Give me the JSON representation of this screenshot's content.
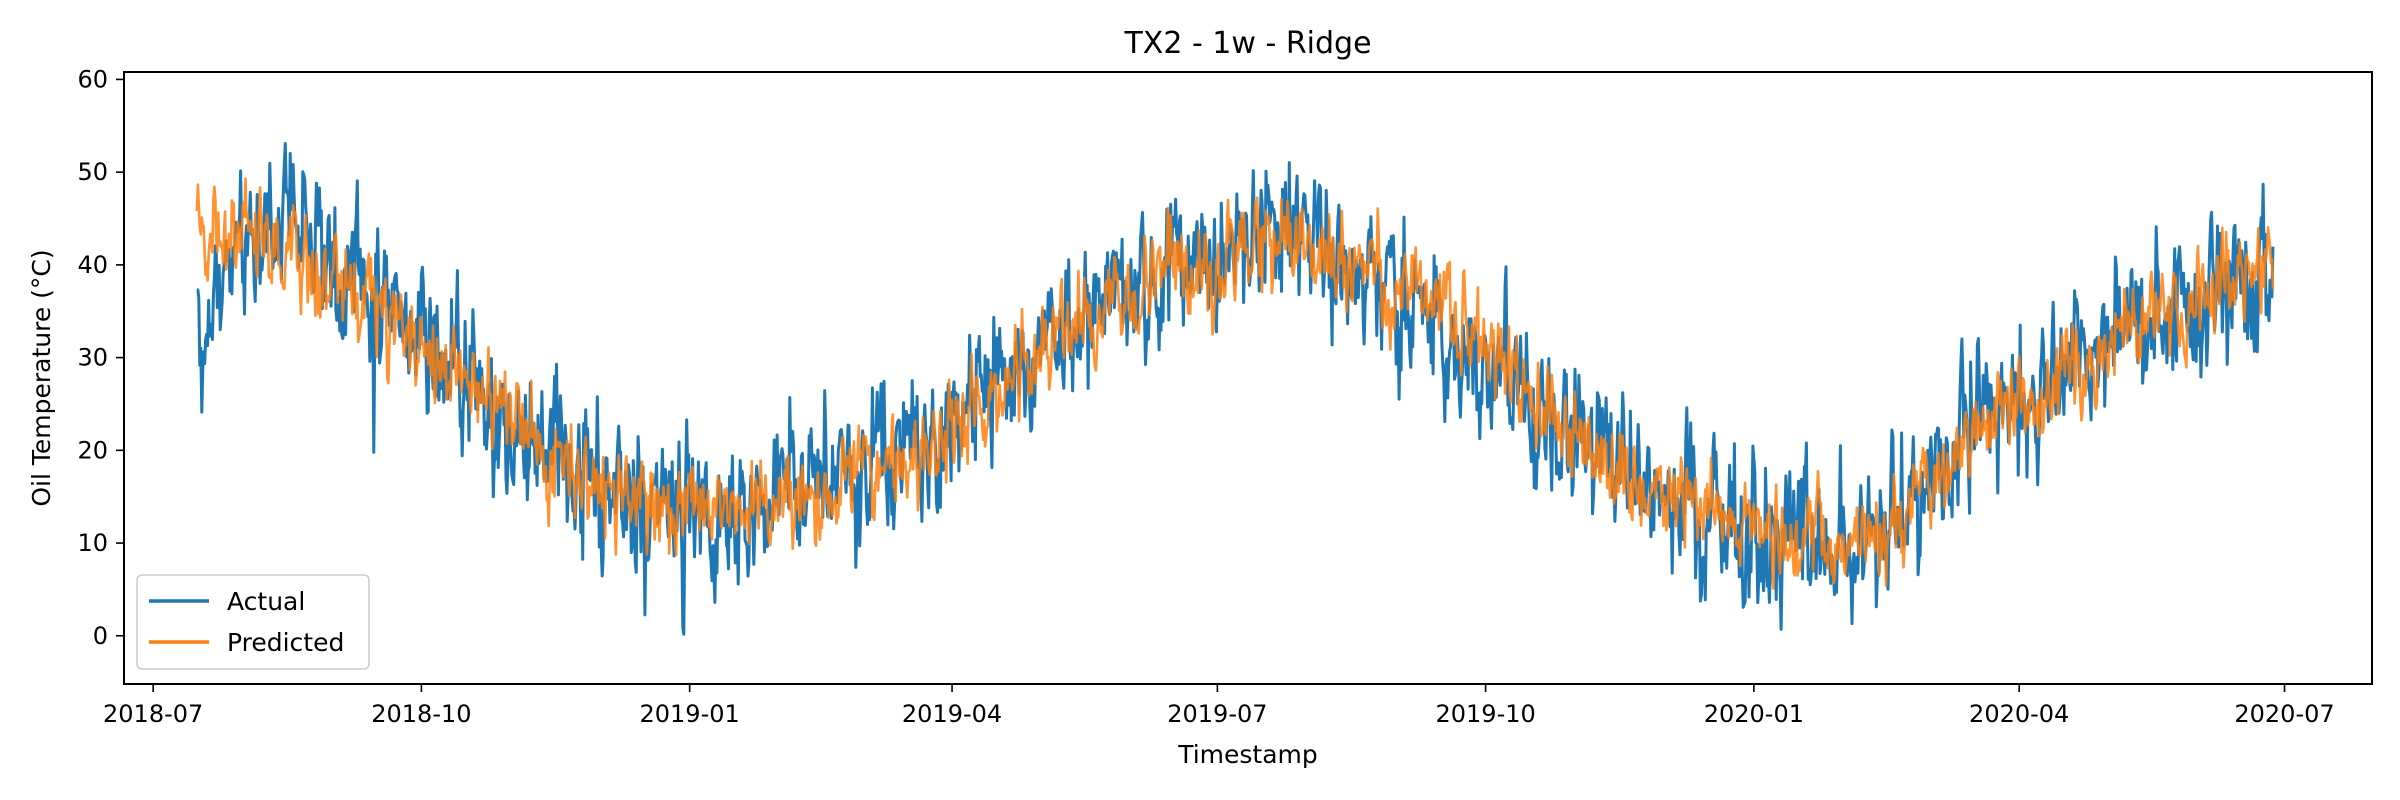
{
  "chart_data": {
    "type": "line",
    "title": "TX2 - 1w - Ridge",
    "xlabel": "Timestamp",
    "ylabel": "Oil Temperature (°C)",
    "x_range": [
      "2018-06-21",
      "2020-07-31"
    ],
    "ylim": [
      -5.2,
      60.8
    ],
    "x_ticks": [
      "2018-07",
      "2018-10",
      "2019-01",
      "2019-04",
      "2019-07",
      "2019-10",
      "2020-01",
      "2020-04",
      "2020-07"
    ],
    "y_ticks": [
      0,
      10,
      20,
      30,
      40,
      50,
      60
    ],
    "grid": false,
    "legend_position": "bottom-left",
    "series": [
      {
        "name": "Actual",
        "color": "#1f77b4",
        "anchors": [
          [
            "2018-07-16",
            33
          ],
          [
            "2018-08-01",
            43
          ],
          [
            "2018-08-15",
            47
          ],
          [
            "2018-09-01",
            40
          ],
          [
            "2018-09-15",
            36
          ],
          [
            "2018-10-01",
            31
          ],
          [
            "2018-10-15",
            28
          ],
          [
            "2018-11-01",
            23
          ],
          [
            "2018-11-15",
            20
          ],
          [
            "2018-12-01",
            16
          ],
          [
            "2018-12-15",
            15
          ],
          [
            "2019-01-01",
            14
          ],
          [
            "2019-01-15",
            13
          ],
          [
            "2019-02-01",
            14
          ],
          [
            "2019-02-15",
            16
          ],
          [
            "2019-03-01",
            18
          ],
          [
            "2019-03-15",
            20
          ],
          [
            "2019-04-01",
            22
          ],
          [
            "2019-04-15",
            27
          ],
          [
            "2019-05-01",
            31
          ],
          [
            "2019-05-15",
            34
          ],
          [
            "2019-06-01",
            37
          ],
          [
            "2019-06-15",
            39
          ],
          [
            "2019-07-01",
            41
          ],
          [
            "2019-07-15",
            43
          ],
          [
            "2019-08-01",
            44
          ],
          [
            "2019-08-15",
            40
          ],
          [
            "2019-09-01",
            37
          ],
          [
            "2019-09-15",
            35
          ],
          [
            "2019-10-01",
            30
          ],
          [
            "2019-10-15",
            26
          ],
          [
            "2019-11-01",
            22
          ],
          [
            "2019-11-15",
            19
          ],
          [
            "2019-12-01",
            15
          ],
          [
            "2019-12-15",
            13
          ],
          [
            "2020-01-01",
            11
          ],
          [
            "2020-01-15",
            10
          ],
          [
            "2020-02-01",
            8
          ],
          [
            "2020-02-15",
            12
          ],
          [
            "2020-03-01",
            17
          ],
          [
            "2020-03-15",
            22
          ],
          [
            "2020-04-01",
            26
          ],
          [
            "2020-04-15",
            29
          ],
          [
            "2020-05-01",
            32
          ],
          [
            "2020-05-15",
            35
          ],
          [
            "2020-06-01",
            37
          ],
          [
            "2020-06-15",
            40
          ],
          [
            "2020-06-27",
            42
          ]
        ]
      },
      {
        "name": "Predicted",
        "color": "#ff7f0e",
        "anchors": [
          [
            "2018-07-16",
            44
          ],
          [
            "2018-08-01",
            42
          ],
          [
            "2018-08-15",
            41
          ],
          [
            "2018-09-01",
            38
          ],
          [
            "2018-09-15",
            35
          ],
          [
            "2018-10-01",
            31
          ],
          [
            "2018-10-15",
            28
          ],
          [
            "2018-11-01",
            23
          ],
          [
            "2018-11-15",
            19
          ],
          [
            "2018-12-01",
            16
          ],
          [
            "2018-12-15",
            15
          ],
          [
            "2019-01-01",
            14
          ],
          [
            "2019-01-15",
            14
          ],
          [
            "2019-02-01",
            15
          ],
          [
            "2019-02-15",
            16
          ],
          [
            "2019-03-01",
            18
          ],
          [
            "2019-03-15",
            20
          ],
          [
            "2019-04-01",
            22
          ],
          [
            "2019-04-15",
            26
          ],
          [
            "2019-05-01",
            30
          ],
          [
            "2019-05-15",
            34
          ],
          [
            "2019-06-01",
            37
          ],
          [
            "2019-06-15",
            39
          ],
          [
            "2019-07-01",
            40
          ],
          [
            "2019-07-15",
            42
          ],
          [
            "2019-08-01",
            43
          ],
          [
            "2019-08-15",
            40
          ],
          [
            "2019-09-01",
            37
          ],
          [
            "2019-09-15",
            35
          ],
          [
            "2019-10-01",
            30
          ],
          [
            "2019-10-15",
            26
          ],
          [
            "2019-11-01",
            22
          ],
          [
            "2019-11-15",
            18
          ],
          [
            "2019-12-01",
            16
          ],
          [
            "2019-12-15",
            14
          ],
          [
            "2020-01-01",
            12
          ],
          [
            "2020-01-15",
            11
          ],
          [
            "2020-02-01",
            9
          ],
          [
            "2020-02-15",
            12
          ],
          [
            "2020-03-01",
            16
          ],
          [
            "2020-03-15",
            21
          ],
          [
            "2020-04-01",
            25
          ],
          [
            "2020-04-15",
            28
          ],
          [
            "2020-05-01",
            31
          ],
          [
            "2020-05-15",
            34
          ],
          [
            "2020-06-01",
            37
          ],
          [
            "2020-06-15",
            39
          ],
          [
            "2020-06-27",
            41
          ]
        ]
      }
    ]
  }
}
